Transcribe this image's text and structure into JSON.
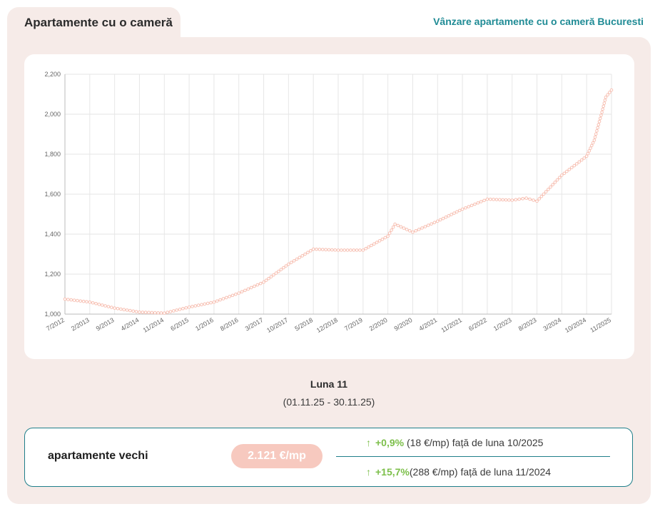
{
  "tab": {
    "label": "Apartamente cu o cameră"
  },
  "top_link": {
    "label": "Vânzare apartamente cu o cameră Bucuresti"
  },
  "chart_data": {
    "type": "line",
    "x_tick_labels": [
      "7/2012",
      "2/2013",
      "9/2013",
      "4/2014",
      "11/2014",
      "6/2015",
      "1/2016",
      "8/2016",
      "3/2017",
      "10/2017",
      "5/2018",
      "12/2018",
      "7/2019",
      "2/2020",
      "9/2020",
      "4/2021",
      "11/2021",
      "6/2022",
      "1/2023",
      "8/2023",
      "3/2024",
      "10/2024",
      "11/2025"
    ],
    "y_tick_labels": [
      "1,000",
      "1,200",
      "1,400",
      "1,600",
      "1,800",
      "2,000",
      "2,200"
    ],
    "ylim": [
      1000,
      2200
    ],
    "grid": true,
    "line_color": "#f7c1b4",
    "series": [
      {
        "x": [
          "7/2012",
          "2/2013",
          "9/2013",
          "4/2014",
          "11/2014",
          "6/2015",
          "1/2016",
          "8/2016",
          "3/2017",
          "10/2017",
          "5/2018",
          "12/2018",
          "7/2019",
          "2/2020",
          "4/2020",
          "9/2020",
          "4/2021",
          "11/2021",
          "6/2022",
          "1/2023",
          "5/2023",
          "8/2023",
          "3/2024",
          "10/2024",
          "2/2025",
          "6/2025",
          "8/2025",
          "11/2025"
        ],
        "y": [
          1075,
          1060,
          1030,
          1010,
          1005,
          1035,
          1060,
          1105,
          1160,
          1250,
          1325,
          1320,
          1320,
          1390,
          1450,
          1410,
          1465,
          1525,
          1575,
          1570,
          1580,
          1565,
          1695,
          1790,
          1870,
          2010,
          2085,
          2121
        ]
      }
    ]
  },
  "month_label": "Luna 11",
  "period_label": "(01.11.25 - 30.11.25)",
  "stats": {
    "type_label": "apartamente vechi",
    "price": "2.121 €/mp",
    "changes": [
      {
        "arrow": "↑",
        "pct": "+0,9%",
        "detail": " (18 €/mp) față de luna 10/2025"
      },
      {
        "arrow": "↑",
        "pct": "+15,7%",
        "detail": "(288 €/mp) față de luna 11/2024"
      }
    ]
  }
}
